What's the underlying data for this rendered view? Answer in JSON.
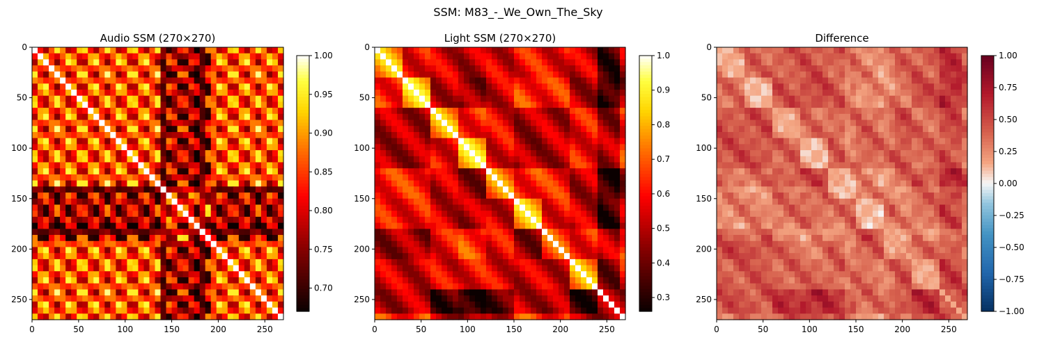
{
  "suptitle": "SSM: M83_-_We_Own_The_Sky",
  "chart_data": [
    {
      "type": "heatmap",
      "title": "Audio SSM (270×270)",
      "matrix_size": 270,
      "xlim": [
        0,
        270
      ],
      "ylim": [
        270,
        0
      ],
      "x_ticks": [
        0,
        50,
        100,
        150,
        200,
        250
      ],
      "y_ticks": [
        0,
        50,
        100,
        150,
        200,
        250
      ],
      "colormap": "hot",
      "colorbar": {
        "min": 0.67,
        "max": 1.0,
        "ticks": [
          "0.70",
          "0.75",
          "0.80",
          "0.85",
          "0.90",
          "0.95",
          "1.00"
        ],
        "tick_values": [
          0.7,
          0.75,
          0.8,
          0.85,
          0.9,
          0.95,
          1.0
        ]
      }
    },
    {
      "type": "heatmap",
      "title": "Light SSM (270×270)",
      "matrix_size": 270,
      "xlim": [
        0,
        270
      ],
      "ylim": [
        270,
        0
      ],
      "x_ticks": [
        0,
        50,
        100,
        150,
        200,
        250
      ],
      "y_ticks": [
        0,
        50,
        100,
        150,
        200,
        250
      ],
      "colormap": "hot",
      "colorbar": {
        "min": 0.26,
        "max": 1.0,
        "ticks": [
          "0.3",
          "0.4",
          "0.5",
          "0.6",
          "0.7",
          "0.8",
          "0.9",
          "1.0"
        ],
        "tick_values": [
          0.3,
          0.4,
          0.5,
          0.6,
          0.7,
          0.8,
          0.9,
          1.0
        ]
      }
    },
    {
      "type": "heatmap",
      "title": "Difference",
      "matrix_size": 270,
      "xlim": [
        0,
        270
      ],
      "ylim": [
        270,
        0
      ],
      "x_ticks": [
        0,
        50,
        100,
        150,
        200,
        250
      ],
      "y_ticks": [
        0,
        50,
        100,
        150,
        200,
        250
      ],
      "colormap": "RdBu_r",
      "colorbar": {
        "min": -1.0,
        "max": 1.0,
        "ticks": [
          "1.00",
          "0.75",
          "0.50",
          "0.25",
          "0.00",
          "−0.25",
          "−0.50",
          "−0.75",
          "−1.00"
        ],
        "tick_values": [
          1.0,
          0.75,
          0.5,
          0.25,
          0.0,
          -0.25,
          -0.5,
          -0.75,
          -1.0
        ]
      }
    }
  ]
}
